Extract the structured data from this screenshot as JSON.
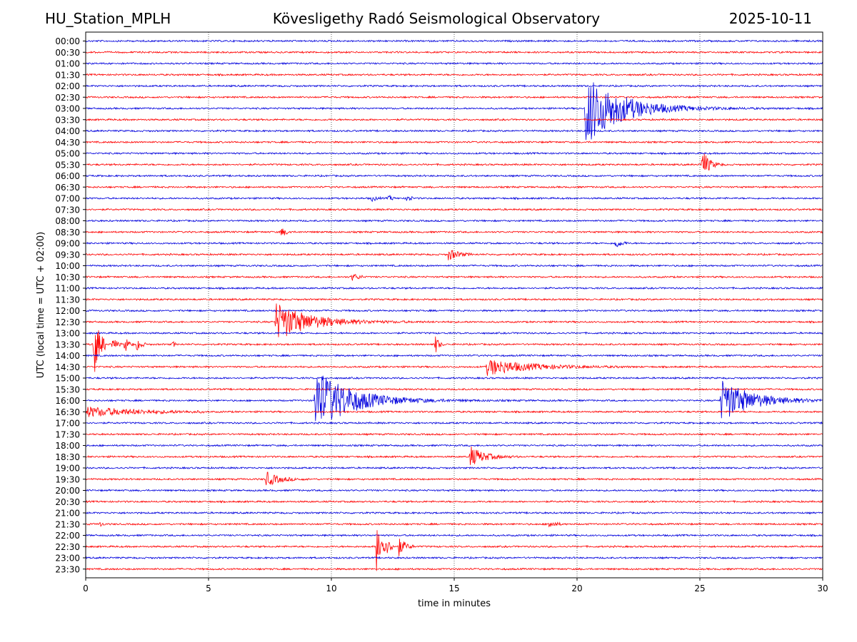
{
  "header": {
    "station": "HU_Station_MPLH",
    "title": "Kövesligethy Radó Seismological Observatory",
    "date": "2025-10-11"
  },
  "chart_data": {
    "type": "line",
    "title": "Kövesligethy Radó Seismological Observatory",
    "xlabel": "time in minutes",
    "ylabel": "UTC (local time = UTC + 02:00)",
    "xlim": [
      0,
      30
    ],
    "xticks": [
      0,
      5,
      10,
      15,
      20,
      25,
      30
    ],
    "vertical_grid": [
      5,
      10,
      15,
      20,
      25
    ],
    "grid_style": "dotted",
    "row_labels": [
      "00:00",
      "00:30",
      "01:00",
      "01:30",
      "02:00",
      "02:30",
      "03:00",
      "03:30",
      "04:00",
      "04:30",
      "05:00",
      "05:30",
      "06:00",
      "06:30",
      "07:00",
      "07:30",
      "08:00",
      "08:30",
      "09:00",
      "09:30",
      "10:00",
      "10:30",
      "11:00",
      "11:30",
      "12:00",
      "12:30",
      "13:00",
      "13:30",
      "14:00",
      "14:30",
      "15:00",
      "15:30",
      "16:00",
      "16:30",
      "17:00",
      "17:30",
      "18:00",
      "18:30",
      "19:00",
      "19:30",
      "20:00",
      "20:30",
      "21:00",
      "21:30",
      "22:00",
      "22:30",
      "23:00",
      "23:30"
    ],
    "series_colors": [
      "#0000dd",
      "#ff0000"
    ],
    "color_rule": "rows alternate blue (full hour) and red (half hour)",
    "events": [
      {
        "row": "03:00",
        "onset_min": 20.3,
        "peak": 3.3,
        "duration_min": 10.0,
        "decay_min": 1.4
      },
      {
        "row": "07:00",
        "onset_min": 11.6,
        "peak": 0.3,
        "duration_min": 0.4,
        "decay_min": 0.2
      },
      {
        "row": "07:00",
        "onset_min": 12.3,
        "peak": 0.35,
        "duration_min": 0.3,
        "decay_min": 0.15
      },
      {
        "row": "07:00",
        "onset_min": 13.05,
        "peak": 0.9,
        "duration_min": 0.3,
        "decay_min": 0.1
      },
      {
        "row": "05:30",
        "onset_min": 25.05,
        "peak": 1.7,
        "duration_min": 0.9,
        "decay_min": 0.25
      },
      {
        "row": "08:30",
        "onset_min": 7.9,
        "peak": 0.45,
        "duration_min": 0.5,
        "decay_min": 0.25
      },
      {
        "row": "09:00",
        "onset_min": 21.5,
        "peak": 0.5,
        "duration_min": 0.6,
        "decay_min": 0.25
      },
      {
        "row": "09:30",
        "onset_min": 14.7,
        "peak": 0.6,
        "duration_min": 1.0,
        "decay_min": 0.4
      },
      {
        "row": "10:30",
        "onset_min": 10.8,
        "peak": 0.35,
        "duration_min": 0.5,
        "decay_min": 0.3
      },
      {
        "row": "12:30",
        "onset_min": 7.7,
        "peak": 1.8,
        "duration_min": 9.0,
        "decay_min": 1.3
      },
      {
        "row": "13:30",
        "onset_min": 0.3,
        "peak": 3.2,
        "duration_min": 0.5,
        "decay_min": 0.25
      },
      {
        "row": "13:30",
        "onset_min": 1.05,
        "peak": 0.9,
        "duration_min": 0.4,
        "decay_min": 0.15
      },
      {
        "row": "13:30",
        "onset_min": 1.55,
        "peak": 1.0,
        "duration_min": 0.4,
        "decay_min": 0.15
      },
      {
        "row": "13:30",
        "onset_min": 2.05,
        "peak": 0.9,
        "duration_min": 0.4,
        "decay_min": 0.15
      },
      {
        "row": "13:30",
        "onset_min": 3.5,
        "peak": 0.5,
        "duration_min": 0.2,
        "decay_min": 0.08
      },
      {
        "row": "13:30",
        "onset_min": 14.2,
        "peak": 1.2,
        "duration_min": 0.4,
        "decay_min": 0.12
      },
      {
        "row": "14:30",
        "onset_min": 16.3,
        "peak": 0.75,
        "duration_min": 6.0,
        "decay_min": 1.6
      },
      {
        "row": "16:00",
        "onset_min": 9.3,
        "peak": 3.0,
        "duration_min": 20.0,
        "decay_min": 1.4
      },
      {
        "row": "16:00",
        "onset_min": 25.8,
        "peak": 2.0,
        "duration_min": 4.2,
        "decay_min": 1.2
      },
      {
        "row": "16:30",
        "onset_min": 0.0,
        "peak": 0.45,
        "duration_min": 4.8,
        "decay_min": 2.0
      },
      {
        "row": "18:30",
        "onset_min": 15.6,
        "peak": 1.0,
        "duration_min": 2.0,
        "decay_min": 0.55
      },
      {
        "row": "19:30",
        "onset_min": 7.3,
        "peak": 0.7,
        "duration_min": 1.8,
        "decay_min": 0.5
      },
      {
        "row": "21:30",
        "onset_min": 0.5,
        "peak": 0.35,
        "duration_min": 0.3,
        "decay_min": 0.12
      },
      {
        "row": "21:30",
        "onset_min": 18.8,
        "peak": 0.45,
        "duration_min": 0.6,
        "decay_min": 0.25
      },
      {
        "row": "22:30",
        "onset_min": 11.8,
        "peak": 2.6,
        "duration_min": 0.8,
        "decay_min": 0.3
      },
      {
        "row": "22:30",
        "onset_min": 12.7,
        "peak": 1.0,
        "duration_min": 0.7,
        "decay_min": 0.25
      }
    ]
  }
}
